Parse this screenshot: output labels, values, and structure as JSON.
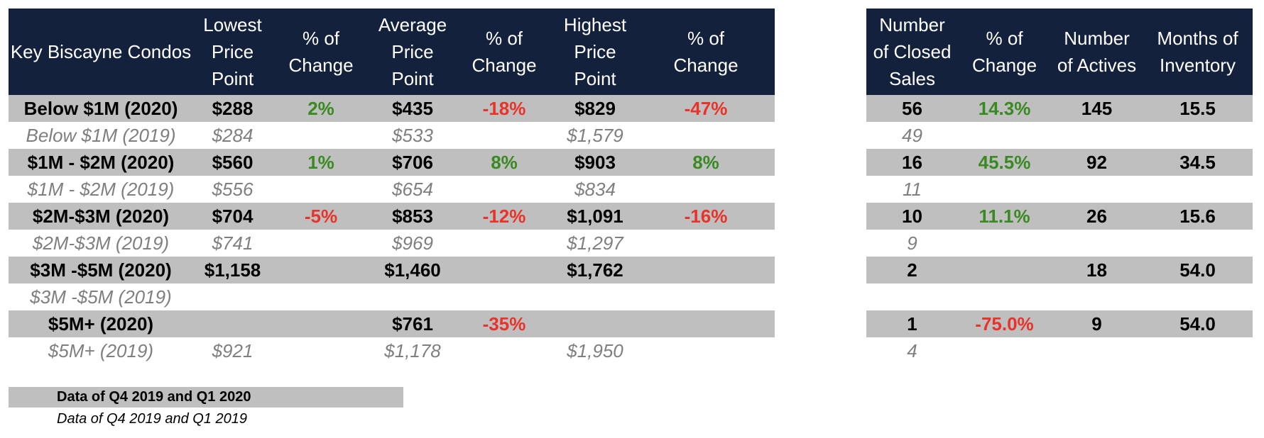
{
  "colors": {
    "header_bg": "#14213d",
    "row_2020_bg": "#bfbfbf",
    "positive": "#3a8a22",
    "negative": "#e8332a",
    "row_2019_text": "#7f7f7f"
  },
  "left_headers": [
    [
      "Key Biscayne Condos"
    ],
    [
      "Lowest",
      "Price",
      "Point"
    ],
    [
      "% of",
      "Change"
    ],
    [
      "Average",
      "Price",
      "Point"
    ],
    [
      "% of",
      "Change"
    ],
    [
      "Highest",
      "Price",
      "Point"
    ],
    [
      "% of",
      "Change"
    ]
  ],
  "right_headers": [
    [
      "Number",
      "of Closed",
      "Sales"
    ],
    [
      "% of",
      "Change"
    ],
    [
      "Number",
      "of Actives"
    ],
    [
      "Months of",
      "Inventory"
    ]
  ],
  "chart_data": {
    "type": "table",
    "rows": [
      {
        "kind": "2020",
        "cells": [
          "Below $1M (2020)",
          "$288",
          "2%",
          "$435",
          "-18%",
          "$829",
          "-47%"
        ],
        "right": [
          "56",
          "14.3%",
          "145",
          "15.5"
        ]
      },
      {
        "kind": "2019",
        "cells": [
          "Below $1M (2019)",
          "$284",
          "",
          "$533",
          "",
          "$1,579",
          ""
        ],
        "right": [
          "49",
          "",
          "",
          ""
        ]
      },
      {
        "kind": "2020",
        "cells": [
          "$1M - $2M (2020)",
          "$560",
          "1%",
          "$706",
          "8%",
          "$903",
          "8%"
        ],
        "right": [
          "16",
          "45.5%",
          "92",
          "34.5"
        ]
      },
      {
        "kind": "2019",
        "cells": [
          "$1M - $2M (2019)",
          "$556",
          "",
          "$654",
          "",
          "$834",
          ""
        ],
        "right": [
          "11",
          "",
          "",
          ""
        ]
      },
      {
        "kind": "2020",
        "cells": [
          "$2M-$3M (2020)",
          "$704",
          "-5%",
          "$853",
          "-12%",
          "$1,091",
          "-16%"
        ],
        "right": [
          "10",
          "11.1%",
          "26",
          "15.6"
        ]
      },
      {
        "kind": "2019",
        "cells": [
          "$2M-$3M (2019)",
          "$741",
          "",
          "$969",
          "",
          "$1,297",
          ""
        ],
        "right": [
          "9",
          "",
          "",
          ""
        ]
      },
      {
        "kind": "2020",
        "cells": [
          "$3M -$5M (2020)",
          "$1,158",
          "",
          "$1,460",
          "",
          "$1,762",
          ""
        ],
        "right": [
          "2",
          "",
          "18",
          "54.0"
        ]
      },
      {
        "kind": "2019",
        "cells": [
          "$3M -$5M (2019)",
          "",
          "",
          "",
          "",
          "",
          ""
        ],
        "right": [
          "",
          "",
          "",
          ""
        ]
      },
      {
        "kind": "2020",
        "cells": [
          "$5M+ (2020)",
          "",
          "",
          "$761",
          "-35%",
          "",
          ""
        ],
        "right": [
          "1",
          "-75.0%",
          "9",
          "54.0"
        ]
      },
      {
        "kind": "2019",
        "cells": [
          "$5M+ (2019)",
          "$921",
          "",
          "$1,178",
          "",
          "$1,950",
          ""
        ],
        "right": [
          "4",
          "",
          "",
          ""
        ]
      }
    ]
  },
  "legend": {
    "current": "Data of Q4 2019 and Q1 2020",
    "previous": "Data of Q4 2019 and Q1 2019"
  }
}
